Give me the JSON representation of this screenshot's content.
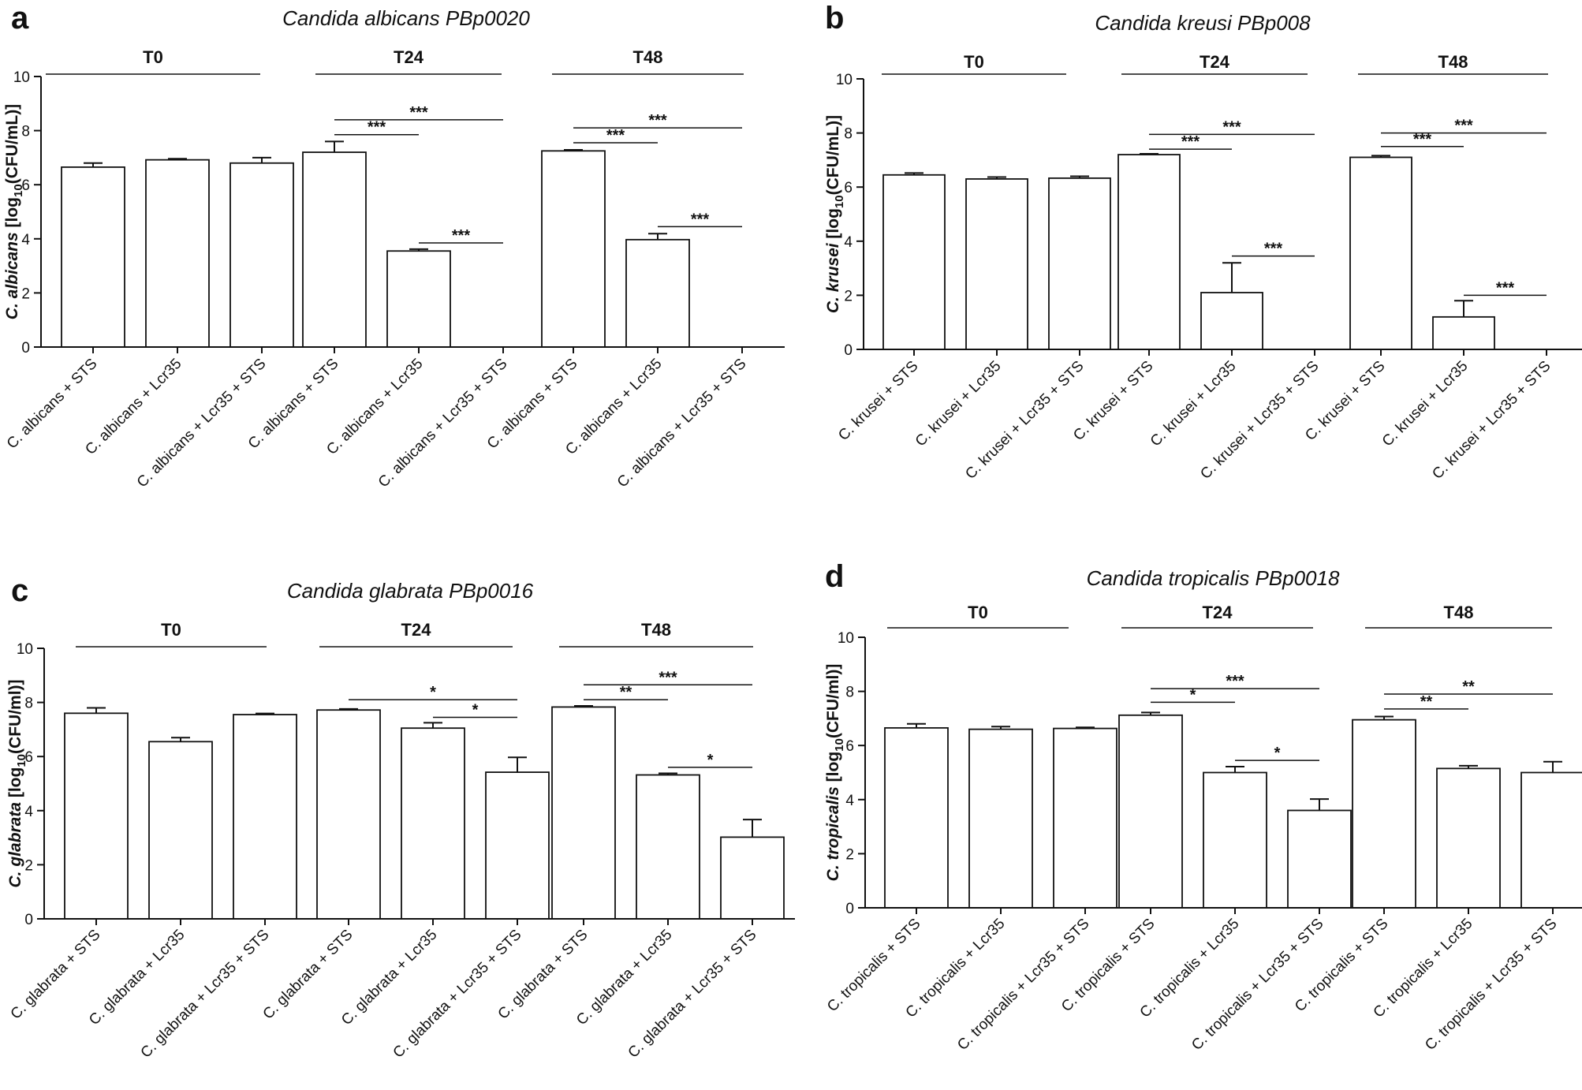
{
  "figure": {
    "colors": {
      "axis": "#111111",
      "bar_fill": "#ffffff",
      "bar_stroke": "#111111",
      "background": "#ffffff"
    }
  },
  "chart_data": [
    {
      "panel": "a",
      "type": "bar",
      "title": "Candida albicans PBp0020",
      "ylabel": {
        "species": "C. albicans",
        "unit_prefix": "[log",
        "unit_sub": "10",
        "unit_suffix": "(CFU/mL)]"
      },
      "ylim": [
        0,
        10
      ],
      "yticks": [
        "0",
        "2",
        "4",
        "6",
        "8",
        "10"
      ],
      "groups": [
        {
          "label": "T0",
          "categories": [
            "C. albicans + STS",
            "C. albicans + Lcr35",
            "C. albicans + Lcr35 + STS"
          ],
          "values": [
            6.65,
            6.92,
            6.8
          ],
          "errors": [
            0.15,
            0.04,
            0.2
          ],
          "significance": []
        },
        {
          "label": "T24",
          "categories": [
            "C. albicans + STS",
            "C. albicans + Lcr35",
            "C. albicans + Lcr35 + STS"
          ],
          "values": [
            7.2,
            3.55,
            0
          ],
          "errors": [
            0.4,
            0.07,
            0
          ],
          "significance": [
            {
              "from": 0,
              "to": 1,
              "y": 7.85,
              "label": "***"
            },
            {
              "from": 0,
              "to": 2,
              "y": 8.4,
              "label": "***"
            },
            {
              "from": 1,
              "to": 2,
              "y": 3.85,
              "label": "***"
            }
          ]
        },
        {
          "label": "T48",
          "categories": [
            "C. albicans + STS",
            "C. albicans + Lcr35",
            "C. albicans + Lcr35 + STS"
          ],
          "values": [
            7.25,
            3.97,
            0
          ],
          "errors": [
            0.04,
            0.22,
            0
          ],
          "significance": [
            {
              "from": 0,
              "to": 1,
              "y": 7.55,
              "label": "***"
            },
            {
              "from": 0,
              "to": 2,
              "y": 8.1,
              "label": "***"
            },
            {
              "from": 1,
              "to": 2,
              "y": 4.45,
              "label": "***"
            }
          ]
        }
      ]
    },
    {
      "panel": "b",
      "type": "bar",
      "title": "Candida kreusi PBp008",
      "ylabel": {
        "species": "C. krusei",
        "unit_prefix": "[log",
        "unit_sub": "10",
        "unit_suffix": "(CFU/mL)]"
      },
      "ylim": [
        0,
        10
      ],
      "yticks": [
        "0",
        "2",
        "4",
        "6",
        "8",
        "10"
      ],
      "groups": [
        {
          "label": "T0",
          "categories": [
            "C. krusei + STS",
            "C. krusei + Lcr35",
            "C. krusei + Lcr35 + STS"
          ],
          "values": [
            6.45,
            6.3,
            6.33
          ],
          "errors": [
            0.07,
            0.07,
            0.07
          ],
          "significance": []
        },
        {
          "label": "T24",
          "categories": [
            "C. krusei + STS",
            "C. krusei + Lcr35",
            "C. krusei + Lcr35 + STS"
          ],
          "values": [
            7.2,
            2.1,
            0
          ],
          "errors": [
            0.03,
            1.1,
            0
          ],
          "significance": [
            {
              "from": 0,
              "to": 1,
              "y": 7.4,
              "label": "***"
            },
            {
              "from": 0,
              "to": 2,
              "y": 7.95,
              "label": "***"
            },
            {
              "from": 1,
              "to": 2,
              "y": 3.45,
              "label": "***"
            }
          ]
        },
        {
          "label": "T48",
          "categories": [
            "C. krusei + STS",
            "C. krusei + Lcr35",
            "C. krusei + Lcr35 + STS"
          ],
          "values": [
            7.1,
            1.2,
            0
          ],
          "errors": [
            0.06,
            0.6,
            0
          ],
          "significance": [
            {
              "from": 0,
              "to": 1,
              "y": 7.5,
              "label": "***"
            },
            {
              "from": 0,
              "to": 2,
              "y": 8.0,
              "label": "***"
            },
            {
              "from": 1,
              "to": 2,
              "y": 2.0,
              "label": "***"
            }
          ]
        }
      ]
    },
    {
      "panel": "c",
      "type": "bar",
      "title": "Candida glabrata PBp0016",
      "ylabel": {
        "species": "C. glabrata",
        "unit_prefix": "[log",
        "unit_sub": "10",
        "unit_suffix": "(CFU/ml)]"
      },
      "ylim": [
        0,
        10
      ],
      "yticks": [
        "0",
        "2",
        "4",
        "6",
        "8",
        "10"
      ],
      "groups": [
        {
          "label": "T0",
          "categories": [
            "C. glabrata + STS",
            "C. glabrata + Lcr35",
            "C. glabrata + Lcr35 + STS"
          ],
          "values": [
            7.6,
            6.55,
            7.55
          ],
          "errors": [
            0.2,
            0.15,
            0.04
          ],
          "significance": []
        },
        {
          "label": "T24",
          "categories": [
            "C. glabrata + STS",
            "C. glabrata + Lcr35",
            "C. glabrata + Lcr35 + STS"
          ],
          "values": [
            7.72,
            7.05,
            5.42
          ],
          "errors": [
            0.04,
            0.2,
            0.55
          ],
          "significance": [
            {
              "from": 0,
              "to": 2,
              "y": 8.1,
              "label": "*"
            },
            {
              "from": 1,
              "to": 2,
              "y": 7.45,
              "label": "*"
            }
          ]
        },
        {
          "label": "T48",
          "categories": [
            "C. glabrata + STS",
            "C. glabrata + Lcr35",
            "C. glabrata + Lcr35 + STS"
          ],
          "values": [
            7.83,
            5.32,
            3.02
          ],
          "errors": [
            0.04,
            0.06,
            0.65
          ],
          "significance": [
            {
              "from": 0,
              "to": 1,
              "y": 8.1,
              "label": "**"
            },
            {
              "from": 0,
              "to": 2,
              "y": 8.65,
              "label": "***"
            },
            {
              "from": 1,
              "to": 2,
              "y": 5.6,
              "label": "*"
            }
          ]
        }
      ]
    },
    {
      "panel": "d",
      "type": "bar",
      "title": "Candida tropicalis PBp0018",
      "ylabel": {
        "species": "C. tropicalis",
        "unit_prefix": "[log",
        "unit_sub": "10",
        "unit_suffix": "(CFU/ml)]"
      },
      "ylim": [
        0,
        10
      ],
      "yticks": [
        "0",
        "2",
        "4",
        "6",
        "8",
        "10"
      ],
      "groups": [
        {
          "label": "T0",
          "categories": [
            "C. tropicalis + STS",
            "C. tropicalis + Lcr35",
            "C. tropicalis + Lcr35 + STS"
          ],
          "values": [
            6.65,
            6.6,
            6.63
          ],
          "errors": [
            0.15,
            0.1,
            0.04
          ],
          "significance": []
        },
        {
          "label": "T24",
          "categories": [
            "C. tropicalis + STS",
            "C. tropicalis + Lcr35",
            "C. tropicalis + Lcr35 + STS"
          ],
          "values": [
            7.12,
            5.0,
            3.6
          ],
          "errors": [
            0.1,
            0.22,
            0.42
          ],
          "significance": [
            {
              "from": 0,
              "to": 1,
              "y": 7.6,
              "label": "*"
            },
            {
              "from": 0,
              "to": 2,
              "y": 8.1,
              "label": "***"
            },
            {
              "from": 1,
              "to": 2,
              "y": 5.45,
              "label": "*"
            }
          ]
        },
        {
          "label": "T48",
          "categories": [
            "C. tropicalis + STS",
            "C. tropicalis + Lcr35",
            "C. tropicalis + Lcr35 + STS"
          ],
          "values": [
            6.95,
            5.15,
            5.0
          ],
          "errors": [
            0.12,
            0.1,
            0.4
          ],
          "significance": [
            {
              "from": 0,
              "to": 1,
              "y": 7.35,
              "label": "**"
            },
            {
              "from": 0,
              "to": 2,
              "y": 7.9,
              "label": "**"
            }
          ]
        }
      ]
    }
  ]
}
